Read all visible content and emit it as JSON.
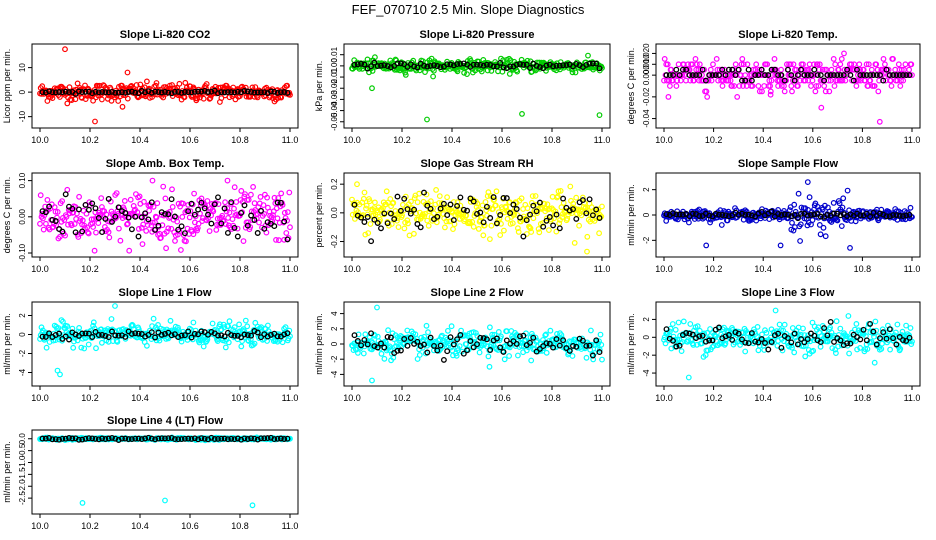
{
  "title": "FEF_070710  2.5 Min. Slope Diagnostics",
  "chart_data": [
    {
      "type": "scatter",
      "title": "Slope Li-820 CO2",
      "ylabel": "Licor ppm per min.",
      "xlim": [
        10.0,
        11.0
      ],
      "ylim": [
        -13,
        18
      ],
      "xticks": [
        "10.0",
        "10.2",
        "10.4",
        "10.6",
        "10.8",
        "11.0"
      ],
      "yticks": [
        {
          "v": -10,
          "label": "-10"
        },
        {
          "v": 0,
          "label": "0"
        },
        {
          "v": 10,
          "label": "10"
        }
      ],
      "color": "#ff0000",
      "spread": 2.5,
      "spread2": 0,
      "center": 0,
      "outliers": [
        [
          10.1,
          17.5
        ],
        [
          10.22,
          -12
        ],
        [
          10.33,
          -6
        ],
        [
          10.35,
          8
        ]
      ],
      "black_spread": 0.3
    },
    {
      "type": "scatter",
      "title": "Slope Li-820 Pressure",
      "ylabel": "kPa per min.",
      "xlim": [
        10.0,
        11.0
      ],
      "ylim": [
        -0.052,
        0.016
      ],
      "xticks": [
        "10.0",
        "10.2",
        "10.4",
        "10.6",
        "10.8",
        "11.0"
      ],
      "yticks": [
        {
          "v": -0.05,
          "label": "-0.05"
        },
        {
          "v": -0.04,
          "label": "-0.04"
        },
        {
          "v": -0.03,
          "label": "-0.03"
        },
        {
          "v": -0.02,
          "label": "-0.02"
        },
        {
          "v": -0.01,
          "label": "-0.01"
        },
        {
          "v": 0,
          "label": "0.00"
        },
        {
          "v": 0.01,
          "label": "0.01"
        }
      ],
      "color": "#00cc00",
      "spread": 0.004,
      "spread2": 0,
      "center": 0,
      "outliers": [
        [
          10.3,
          -0.048
        ],
        [
          10.68,
          -0.043
        ],
        [
          10.99,
          -0.044
        ],
        [
          10.08,
          -0.02
        ]
      ],
      "black_spread": 0.002
    },
    {
      "type": "scatter",
      "title": "Slope Li-820 Temp.",
      "ylabel": "degrees C per min.",
      "xlim": [
        10.0,
        11.0
      ],
      "ylim": [
        -0.045,
        0.025
      ],
      "xticks": [
        "10.0",
        "10.2",
        "10.4",
        "10.6",
        "10.8",
        "11.0"
      ],
      "yticks": [
        {
          "v": -0.04,
          "label": "-0.04"
        },
        {
          "v": -0.02,
          "label": "-0.02"
        },
        {
          "v": 0,
          "label": "0.000"
        },
        {
          "v": 0.01,
          "label": "0.010"
        },
        {
          "v": 0.02,
          "label": "0.020"
        }
      ],
      "color": "#ff00ff",
      "spread": 0.01,
      "spread2": 0,
      "center": 0,
      "quantize": 0.005,
      "outliers": [
        [
          10.43,
          -0.018
        ],
        [
          10.87,
          -0.043
        ]
      ],
      "black_spread": 0.005
    },
    {
      "type": "scatter",
      "title": "Slope Amb. Box Temp.",
      "ylabel": "degrees C per min.",
      "xlim": [
        10.0,
        11.0
      ],
      "ylim": [
        -0.1,
        0.11
      ],
      "xticks": [
        "10.0",
        "10.2",
        "10.4",
        "10.6",
        "10.8",
        "11.0"
      ],
      "yticks": [
        {
          "v": -0.1,
          "label": "-0.10"
        },
        {
          "v": 0,
          "label": "0.00"
        },
        {
          "v": 0.1,
          "label": "0.10"
        }
      ],
      "color": "#ff00ff",
      "spread": 0.05,
      "spread2": 0,
      "center": 0,
      "outliers": [
        [
          10.45,
          0.1
        ],
        [
          10.75,
          0.1
        ]
      ],
      "black_spread": 0.04
    },
    {
      "type": "scatter",
      "title": "Slope Gas Stream RH",
      "ylabel": "percent per min.",
      "xlim": [
        10.0,
        11.0
      ],
      "ylim": [
        -0.28,
        0.25
      ],
      "xticks": [
        "10.0",
        "10.2",
        "10.4",
        "10.6",
        "10.8",
        "11.0"
      ],
      "yticks": [
        {
          "v": -0.2,
          "label": "-0.2"
        },
        {
          "v": 0,
          "label": "0.0"
        },
        {
          "v": 0.2,
          "label": "0.2"
        }
      ],
      "color": "#ffff00",
      "spread": 0.1,
      "spread2": 0,
      "center": 0,
      "outliers": [
        [
          10.94,
          -0.27
        ],
        [
          10.02,
          0.2
        ]
      ],
      "black_spread": 0.09
    },
    {
      "type": "scatter",
      "title": "Slope Sample Flow",
      "ylabel": "ml/min per min.",
      "xlim": [
        10.0,
        11.0
      ],
      "ylim": [
        -3,
        3
      ],
      "xticks": [
        "10.0",
        "10.2",
        "10.4",
        "10.6",
        "10.8",
        "11.0"
      ],
      "yticks": [
        {
          "v": -2,
          "label": "-2"
        },
        {
          "v": 0,
          "label": "0"
        },
        {
          "v": 2,
          "label": "2"
        }
      ],
      "color": "#0000cc",
      "spread": 0.3,
      "spread2": 1.0,
      "center": 0,
      "outliers": [
        [
          10.58,
          2.6
        ],
        [
          10.75,
          -2.6
        ],
        [
          10.17,
          -2.4
        ],
        [
          10.47,
          -2.4
        ]
      ],
      "black_spread": 0.15
    },
    {
      "type": "scatter",
      "title": "Slope Line 1 Flow",
      "ylabel": "ml/min per min.",
      "xlim": [
        10.0,
        11.0
      ],
      "ylim": [
        -5,
        3
      ],
      "xticks": [
        "10.0",
        "10.2",
        "10.4",
        "10.6",
        "10.8",
        "11.0"
      ],
      "yticks": [
        {
          "v": -4,
          "label": "-4"
        },
        {
          "v": -2,
          "label": "-2"
        },
        {
          "v": 0,
          "label": "0"
        },
        {
          "v": 2,
          "label": "2"
        }
      ],
      "color": "#00ffff",
      "spread": 0.8,
      "spread2": 0,
      "center": 0,
      "outliers": [
        [
          10.08,
          -4.2
        ],
        [
          10.3,
          3
        ],
        [
          10.07,
          -3.8
        ]
      ],
      "black_spread": 0.25
    },
    {
      "type": "scatter",
      "title": "Slope Line 2 Flow",
      "ylabel": "ml/min per min.",
      "xlim": [
        10.0,
        11.0
      ],
      "ylim": [
        -5,
        5
      ],
      "xticks": [
        "10.0",
        "10.2",
        "10.4",
        "10.6",
        "10.8",
        "11.0"
      ],
      "yticks": [
        {
          "v": -4,
          "label": "-4"
        },
        {
          "v": -2,
          "label": "-2"
        },
        {
          "v": 0,
          "label": "0"
        },
        {
          "v": 2,
          "label": "2"
        },
        {
          "v": 4,
          "label": "4"
        }
      ],
      "color": "#00ffff",
      "spread": 1.2,
      "spread2": 0,
      "center": 0,
      "outliers": [
        [
          10.1,
          4.8
        ],
        [
          10.08,
          -4.8
        ],
        [
          10.55,
          -3
        ]
      ],
      "black_spread": 0.9
    },
    {
      "type": "scatter",
      "title": "Slope Line 3 Flow",
      "ylabel": "ml/min per min.",
      "xlim": [
        10.0,
        11.0
      ],
      "ylim": [
        -5,
        3.5
      ],
      "xticks": [
        "10.0",
        "10.2",
        "10.4",
        "10.6",
        "10.8",
        "11.0"
      ],
      "yticks": [
        {
          "v": -4,
          "label": "-4"
        },
        {
          "v": -2,
          "label": "-2"
        },
        {
          "v": 0,
          "label": "0"
        },
        {
          "v": 2,
          "label": "2"
        }
      ],
      "color": "#00ffff",
      "spread": 1.2,
      "spread2": 0,
      "center": 0,
      "outliers": [
        [
          10.1,
          -4.5
        ],
        [
          10.45,
          3
        ]
      ],
      "black_spread": 0.9
    },
    {
      "type": "scatter",
      "title": "Slope Line 4 (LT) Flow",
      "ylabel": "ml/min per min.",
      "xlim": [
        10.0,
        11.0
      ],
      "ylim": [
        -3,
        0.2
      ],
      "xticks": [
        "10.0",
        "10.2",
        "10.4",
        "10.6",
        "10.8",
        "11.0"
      ],
      "yticks": [
        {
          "v": -2.5,
          "label": "-2.5"
        },
        {
          "v": -2,
          "label": "-2.0"
        },
        {
          "v": -1.5,
          "label": "-1.5"
        },
        {
          "v": -1,
          "label": "-1.0"
        },
        {
          "v": -0.5,
          "label": "-0.5"
        },
        {
          "v": 0,
          "label": "0.0"
        }
      ],
      "color": "#00ffff",
      "spread": 0.03,
      "spread2": 0,
      "center": 0,
      "outliers": [
        [
          10.17,
          -2.7
        ],
        [
          10.5,
          -2.6
        ],
        [
          10.85,
          -2.8
        ]
      ],
      "black_spread": 0.03
    }
  ]
}
